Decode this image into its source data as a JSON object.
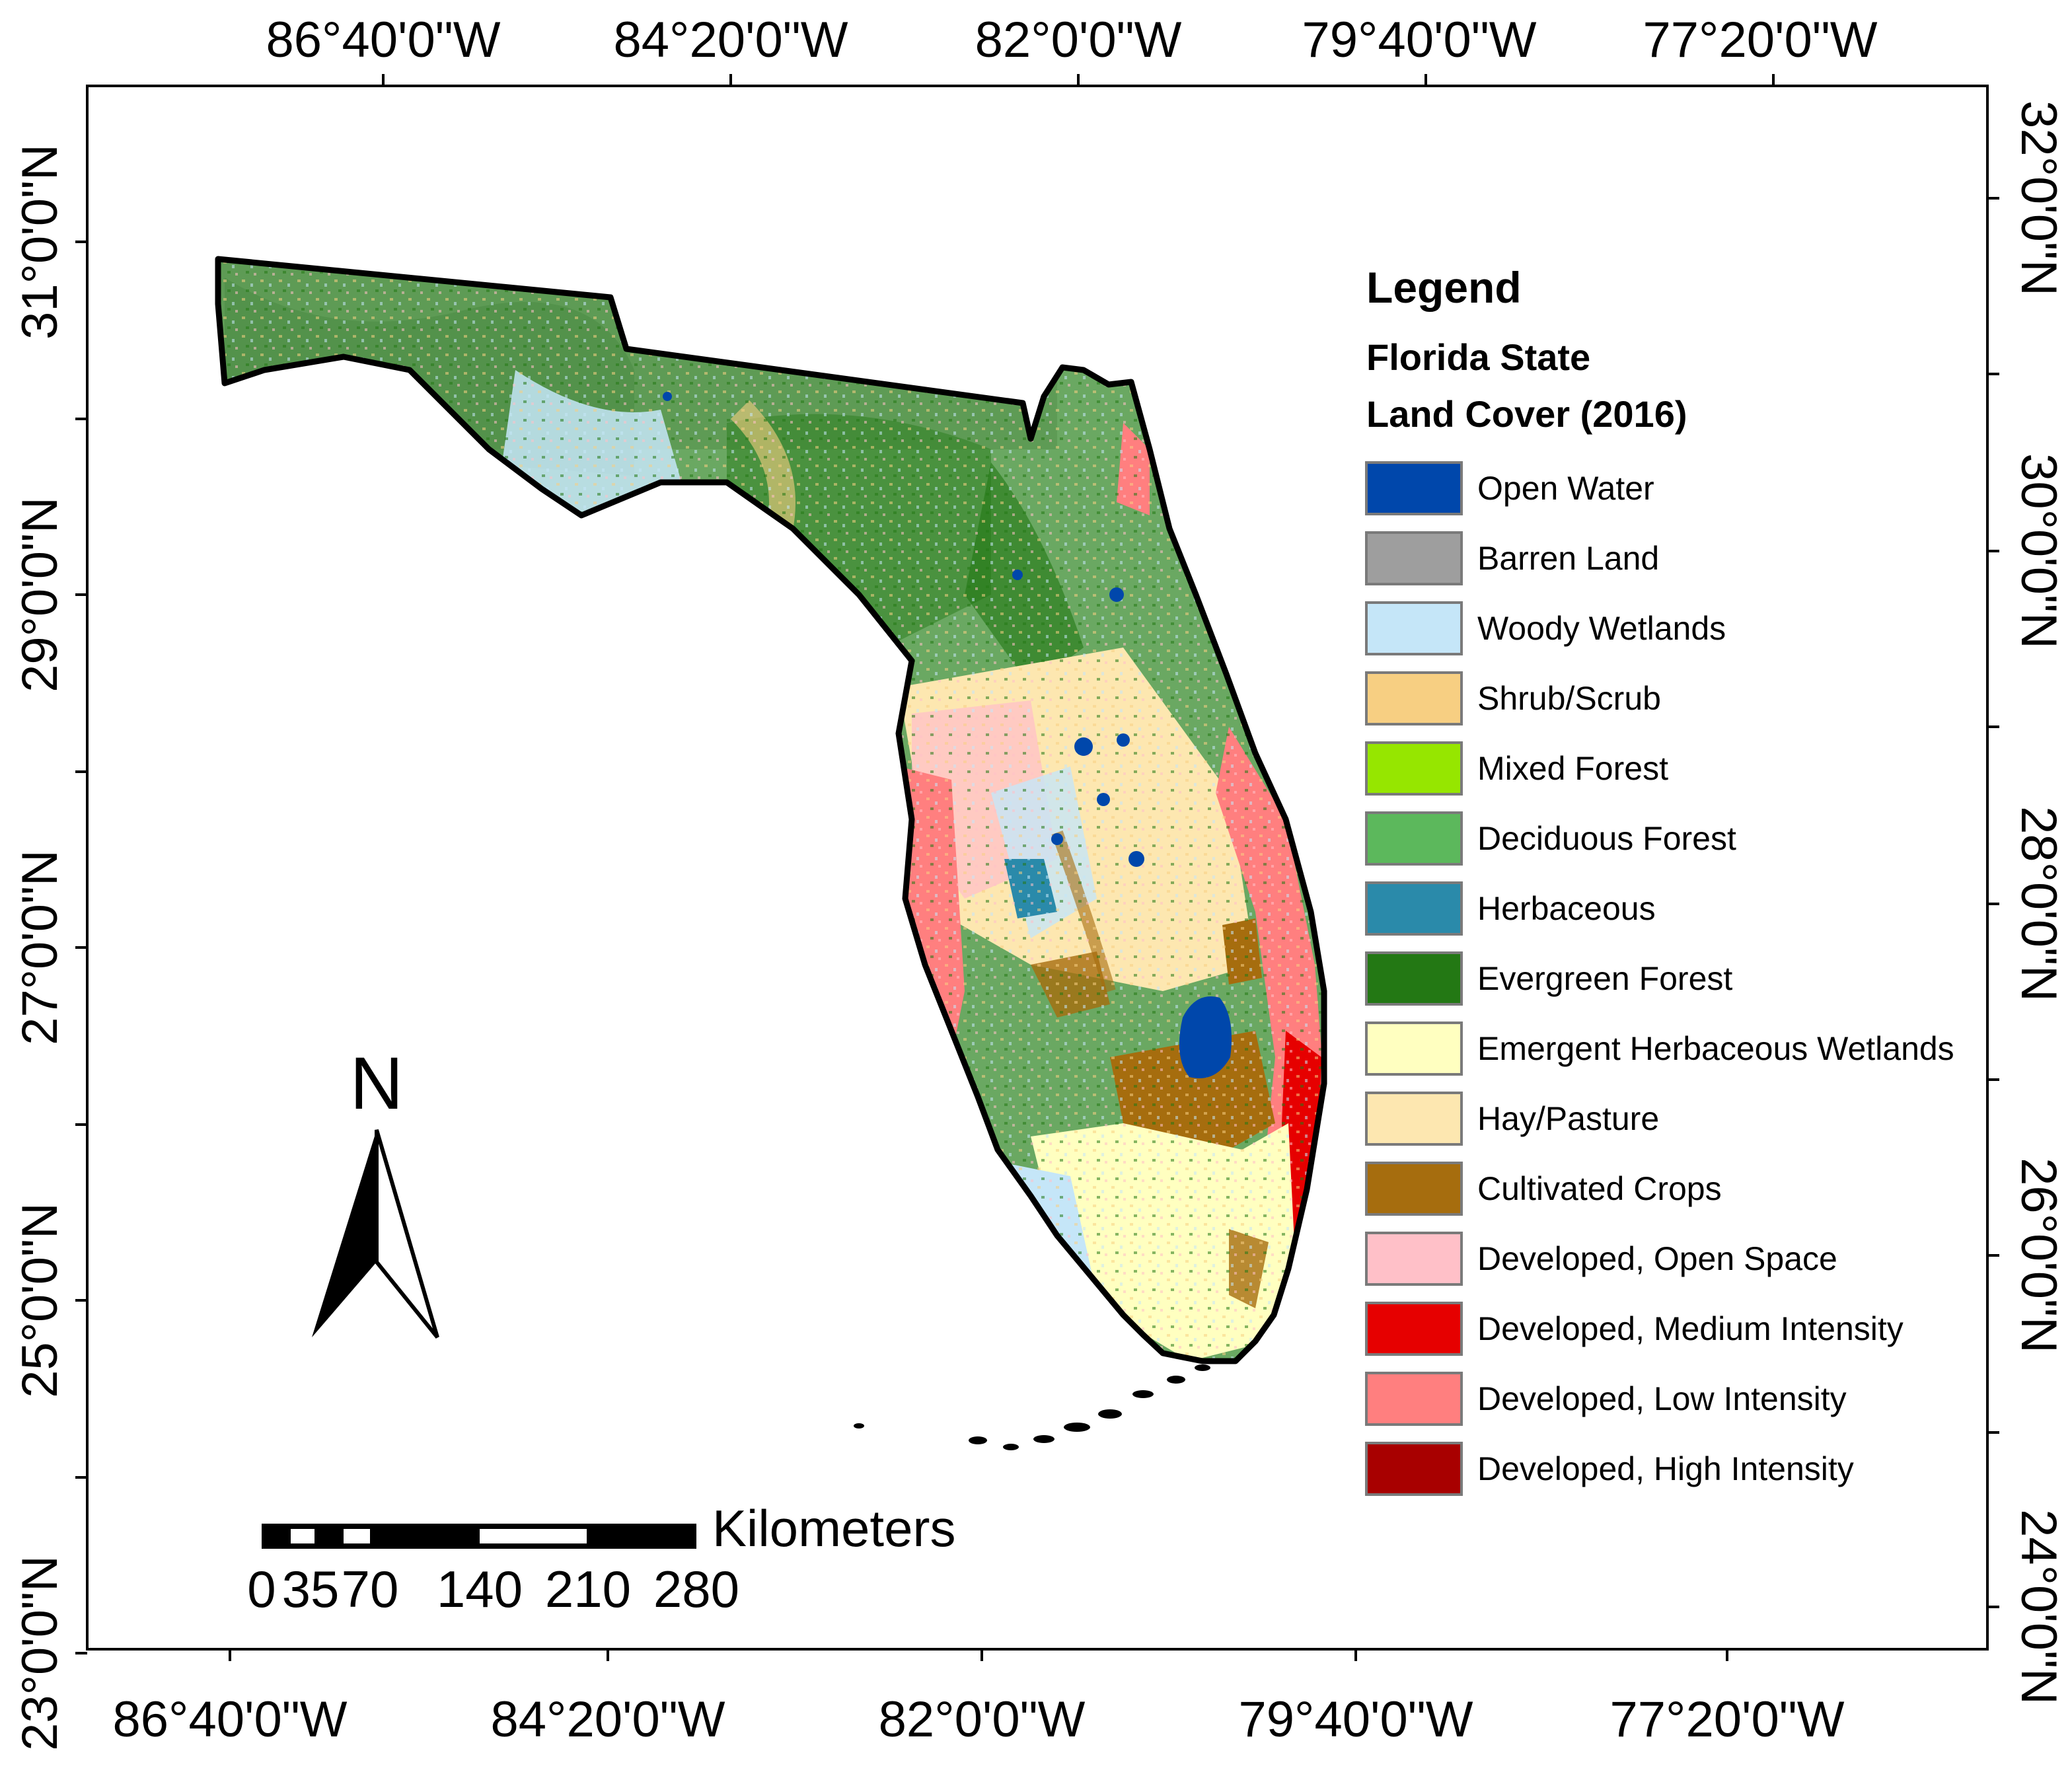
{
  "map": {
    "top_lon_labels": [
      "86°40'0\"W",
      "84°20'0\"W",
      "82°0'0\"W",
      "79°40'0\"W",
      "77°20'0\"W"
    ],
    "bottom_lon_labels": [
      "86°40'0\"W",
      "84°20'0\"W",
      "82°0'0\"W",
      "79°40'0\"W",
      "77°20'0\"W"
    ],
    "left_lat_labels": [
      "31°0'0\"N",
      "29°0'0\"N",
      "27°0'0\"N",
      "25°0'0\"N",
      "23°0'0\"N"
    ],
    "right_lat_labels": [
      "32°0'0\"N",
      "30°0'0\"N",
      "28°0'0\"N",
      "26°0'0\"N",
      "24°0'0\"N"
    ]
  },
  "legend": {
    "heading": "Legend",
    "subtitle_line1": "Florida State",
    "subtitle_line2": "Land Cover (2016)",
    "items": [
      {
        "label": "Open Water",
        "color": "#0047ab"
      },
      {
        "label": "Barren Land",
        "color": "#9e9e9e"
      },
      {
        "label": "Woody Wetlands",
        "color": "#c5e6f8"
      },
      {
        "label": "Shrub/Scrub",
        "color": "#f7cf82"
      },
      {
        "label": "Mixed Forest",
        "color": "#96e600"
      },
      {
        "label": "Deciduous Forest",
        "color": "#5cb85c"
      },
      {
        "label": "Herbaceous",
        "color": "#2a8aaa"
      },
      {
        "label": "Evergreen Forest",
        "color": "#237814"
      },
      {
        "label": "Emergent Herbaceous Wetlands",
        "color": "#ffffc0"
      },
      {
        "label": "Hay/Pasture",
        "color": "#fde7b0"
      },
      {
        "label": "Cultivated Crops",
        "color": "#a66d0e"
      },
      {
        "label": "Developed, Open Space",
        "color": "#ffc0c8"
      },
      {
        "label": "Developed, Medium Intensity",
        "color": "#e60000"
      },
      {
        "label": "Developed, Low Intensity",
        "color": "#ff7f7f"
      },
      {
        "label": "Developed, High Intensity",
        "color": "#a80000"
      }
    ]
  },
  "north_arrow": {
    "label": "N"
  },
  "scale_bar": {
    "unit": "Kilometers",
    "ticks": [
      "0",
      "35",
      "70",
      "140",
      "210",
      "280"
    ]
  }
}
